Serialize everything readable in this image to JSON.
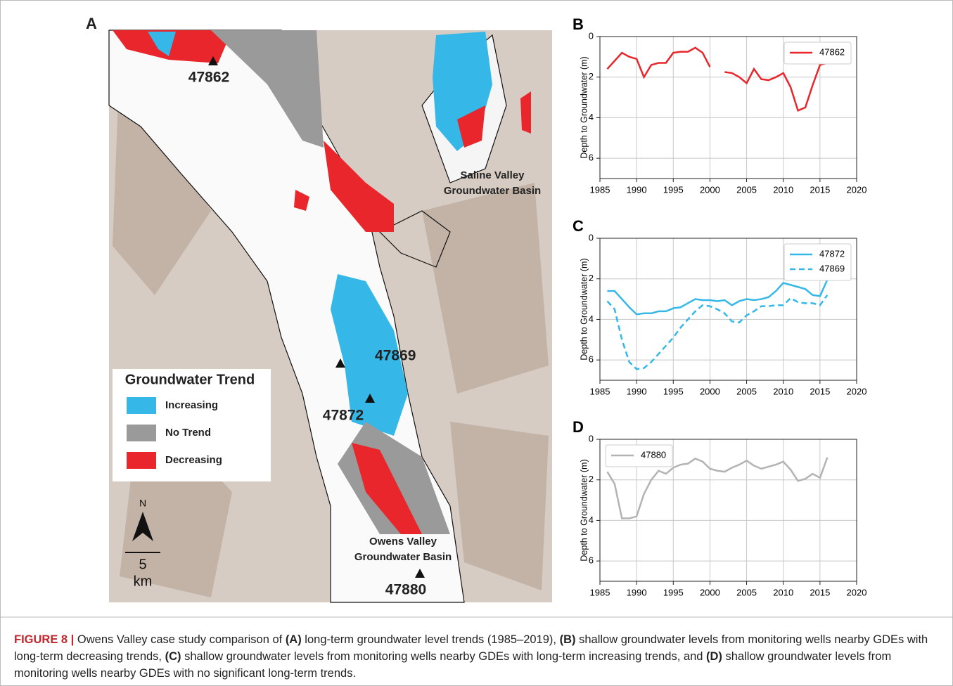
{
  "map": {
    "panel_label": "A",
    "wells": [
      "47862",
      "47869",
      "47872",
      "47880"
    ],
    "basins": [
      [
        "Saline Valley",
        "Groundwater Basin"
      ],
      [
        "Owens Valley",
        "Groundwater Basin"
      ]
    ],
    "legend": {
      "title": "Groundwater Trend",
      "items": [
        {
          "label": "Increasing",
          "color": "#35b7e8"
        },
        {
          "label": "No Trend",
          "color": "#9a9a9a"
        },
        {
          "label": "Decreasing",
          "color": "#e8262b"
        }
      ]
    },
    "north": "N",
    "scale": [
      "5",
      "km"
    ]
  },
  "chart_data": [
    {
      "type": "line",
      "title": "B",
      "ylabel": "Depth to Groundwater (m)",
      "x": [
        1986,
        1987,
        1988,
        1989,
        1990,
        1991,
        1992,
        1993,
        1994,
        1995,
        1996,
        1997,
        1998,
        1999,
        2000,
        2001,
        2002,
        2003,
        2004,
        2005,
        2006,
        2007,
        2008,
        2009,
        2010,
        2011,
        2012,
        2013,
        2014,
        2015,
        2016
      ],
      "series": [
        {
          "name": "47862",
          "color": "#e8262b",
          "linestyle": "solid",
          "values": [
            1.6,
            1.2,
            0.8,
            1.0,
            1.1,
            2.0,
            1.4,
            1.3,
            1.3,
            0.8,
            0.75,
            0.75,
            0.55,
            0.8,
            1.5,
            null,
            1.75,
            1.8,
            2.0,
            2.3,
            1.6,
            2.1,
            2.15,
            2.0,
            1.8,
            2.5,
            3.65,
            3.5,
            2.4,
            1.4,
            1.3
          ]
        }
      ],
      "xlim": [
        1985,
        2020
      ],
      "xticks": [
        1985,
        1990,
        1995,
        2000,
        2005,
        2010,
        2015,
        2020
      ],
      "ylim": [
        7,
        0
      ],
      "yticks": [
        0,
        2,
        4,
        6
      ],
      "grid": true,
      "legend": "upper right"
    },
    {
      "type": "line",
      "title": "C",
      "ylabel": "Depth to Groundwater (m)",
      "x": [
        1986,
        1987,
        1988,
        1989,
        1990,
        1991,
        1992,
        1993,
        1994,
        1995,
        1996,
        1997,
        1998,
        1999,
        2000,
        2001,
        2002,
        2003,
        2004,
        2005,
        2006,
        2007,
        2008,
        2009,
        2010,
        2011,
        2012,
        2013,
        2014,
        2015,
        2016
      ],
      "series": [
        {
          "name": "47872",
          "color": "#35b7e8",
          "linestyle": "solid",
          "values": [
            2.6,
            2.6,
            3.0,
            3.4,
            3.75,
            3.7,
            3.7,
            3.6,
            3.6,
            3.45,
            3.4,
            3.2,
            3.0,
            3.05,
            3.05,
            3.1,
            3.05,
            3.3,
            3.1,
            3.0,
            3.05,
            3.0,
            2.9,
            2.6,
            2.2,
            2.3,
            2.4,
            2.5,
            2.8,
            2.85,
            2.05
          ]
        },
        {
          "name": "47869",
          "color": "#35b7e8",
          "linestyle": "dashed",
          "values": [
            3.1,
            3.5,
            5.0,
            6.1,
            6.45,
            6.4,
            6.1,
            5.7,
            5.3,
            4.9,
            4.4,
            4.0,
            3.6,
            3.3,
            3.35,
            3.5,
            3.7,
            4.1,
            4.15,
            3.8,
            3.6,
            3.35,
            3.35,
            3.3,
            3.3,
            2.95,
            3.15,
            3.2,
            3.2,
            3.3,
            2.8
          ]
        }
      ],
      "xlim": [
        1985,
        2020
      ],
      "xticks": [
        1985,
        1990,
        1995,
        2000,
        2005,
        2010,
        2015,
        2020
      ],
      "ylim": [
        7,
        0
      ],
      "yticks": [
        0,
        2,
        4,
        6
      ],
      "grid": true,
      "legend": "upper right"
    },
    {
      "type": "line",
      "title": "D",
      "ylabel": "Depth to Groundwater (m)",
      "x": [
        1986,
        1987,
        1988,
        1989,
        1990,
        1991,
        1992,
        1993,
        1994,
        1995,
        1996,
        1997,
        1998,
        1999,
        2000,
        2001,
        2002,
        2003,
        2004,
        2005,
        2006,
        2007,
        2008,
        2009,
        2010,
        2011,
        2012,
        2013,
        2014,
        2015,
        2016
      ],
      "series": [
        {
          "name": "47880",
          "color": "#b3b3b3",
          "linestyle": "solid",
          "values": [
            1.6,
            2.2,
            3.9,
            3.9,
            3.8,
            2.7,
            2.0,
            1.55,
            1.7,
            1.4,
            1.25,
            1.2,
            0.95,
            1.1,
            1.45,
            1.55,
            1.6,
            1.4,
            1.25,
            1.05,
            1.3,
            1.45,
            1.35,
            1.25,
            1.1,
            1.5,
            2.05,
            1.95,
            1.7,
            1.9,
            0.9
          ]
        }
      ],
      "xlim": [
        1985,
        2020
      ],
      "xticks": [
        1985,
        1990,
        1995,
        2000,
        2005,
        2010,
        2015,
        2020
      ],
      "ylim": [
        7,
        0
      ],
      "yticks": [
        0,
        2,
        4,
        6
      ],
      "grid": true,
      "legend": "upper left"
    }
  ],
  "caption": {
    "label": "FIGURE 8 |",
    "parts": [
      "Owens Valley case study comparison of ",
      "(A)",
      " long-term groundwater level trends (1985–2019), ",
      "(B)",
      " shallow groundwater levels from monitoring wells nearby GDEs with long-term decreasing trends, ",
      "(C)",
      " shallow groundwater levels from monitoring wells nearby GDEs with long-term increasing trends, and ",
      "(D)",
      " shallow groundwater levels from monitoring wells nearby GDEs with no significant long-term trends."
    ]
  }
}
